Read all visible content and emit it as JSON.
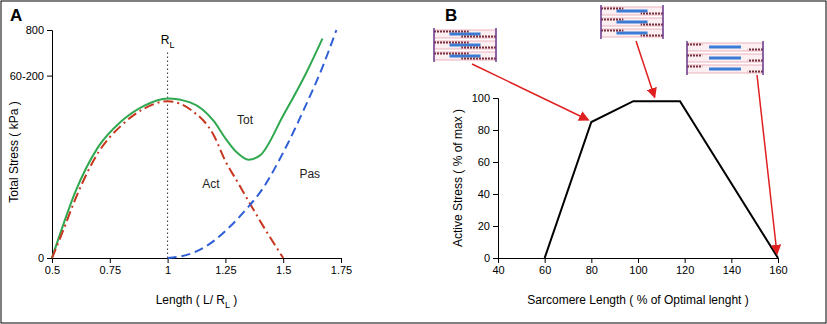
{
  "chart_data": [
    {
      "type": "spline",
      "panel_label": "A",
      "x_label": [
        "Length ( L/ R",
        "L",
        " )"
      ],
      "y_label": "Total Stress ( kPa )",
      "x": [
        0.5,
        0.55,
        0.6,
        0.7,
        0.8,
        0.9,
        1,
        1.1,
        1.2,
        1.25,
        1.3,
        1.35,
        1.4,
        1.5,
        1.6,
        1.67,
        1.73
      ],
      "xlim": [
        0.5,
        1.75
      ],
      "xticks": [
        0.5,
        0.75,
        1,
        1.25,
        1.5,
        1.75
      ],
      "ylim": [
        0,
        800
      ],
      "yticks": [
        0,
        {
          "value": 640,
          "label": "60-200"
        },
        800
      ],
      "series": [
        {
          "name": "Tot",
          "color": "#2fa84f",
          "line_style": "solid",
          "label_x": 1.3,
          "label_y": 470,
          "values": [
            0,
            120,
            230,
            390,
            480,
            535,
            560,
            545,
            480,
            420,
            370,
            345,
            360,
            500,
            650,
            770,
            null
          ]
        },
        {
          "name": "Act",
          "color": "#c8361f",
          "line_style": "dashdot",
          "label_x": 1.15,
          "label_y": 245,
          "values": [
            0,
            100,
            205,
            370,
            465,
            525,
            550,
            520,
            430,
            340,
            270,
            200,
            130,
            0,
            null,
            null,
            null
          ]
        },
        {
          "name": "Pas",
          "color": "#2f5fd6",
          "line_style": "dashed",
          "label_x": 1.57,
          "label_y": 280,
          "values": [
            null,
            null,
            null,
            null,
            null,
            null,
            0,
            15,
            60,
            95,
            135,
            180,
            230,
            370,
            540,
            670,
            800
          ]
        }
      ],
      "reference_line": {
        "x": 1,
        "label": [
          "R",
          "L"
        ]
      }
    },
    {
      "type": "line",
      "panel_label": "B",
      "x_label": "Sarcomere Length ( % of Optimal lenght )",
      "y_label": "Active Stress ( % of max )",
      "x": [
        60,
        80,
        98,
        118,
        160
      ],
      "xlim": [
        40,
        160
      ],
      "xticks": [
        40,
        60,
        80,
        100,
        120,
        140,
        160
      ],
      "ylim": [
        0,
        100
      ],
      "yticks": [
        0,
        20,
        40,
        60,
        80,
        100
      ],
      "series": [
        {
          "color": "#000000",
          "line_style": "solid",
          "values": [
            0,
            85,
            98,
            98,
            0
          ]
        }
      ]
    }
  ]
}
